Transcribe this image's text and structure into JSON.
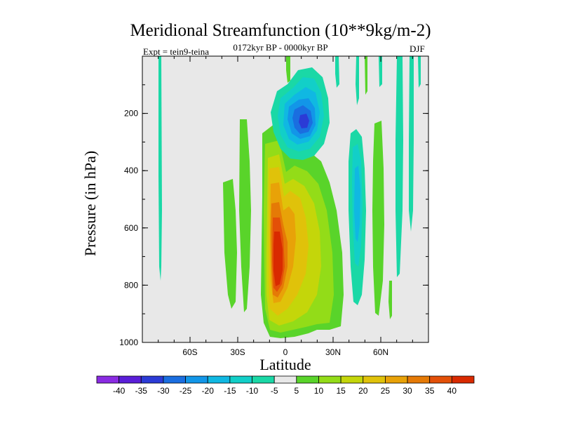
{
  "header": {
    "title": "Meridional Streamfunction (10**9kg/m-2)",
    "subtitle": "0172kyr BP - 0000kyr BP",
    "experiment": "Expt = tein9-teina",
    "season": "DJF"
  },
  "chart_data": {
    "type": "contour",
    "title": "Meridional Streamfunction (10**9kg/m-2)",
    "xlabel": "Latitude",
    "ylabel": "Pressure (in hPa)",
    "xlim": [
      -90,
      90
    ],
    "ylim": [
      1000,
      0
    ],
    "x_ticks": [
      {
        "value": -60,
        "label": "60S"
      },
      {
        "value": -30,
        "label": "30S"
      },
      {
        "value": 0,
        "label": "0"
      },
      {
        "value": 30,
        "label": "30N"
      },
      {
        "value": 60,
        "label": "60N"
      }
    ],
    "y_ticks": [
      {
        "value": 200,
        "label": "200"
      },
      {
        "value": 400,
        "label": "400"
      },
      {
        "value": 600,
        "label": "600"
      },
      {
        "value": 800,
        "label": "800"
      },
      {
        "value": 1000,
        "label": "1000"
      }
    ],
    "background_color": "#e8e8e8",
    "colorbar": {
      "labels": [
        "-40",
        "-35",
        "-30",
        "-25",
        "-20",
        "-15",
        "-10",
        "-5",
        "5",
        "10",
        "15",
        "20",
        "25",
        "30",
        "35",
        "40"
      ],
      "colors": [
        "#8a2be2",
        "#5a1ed8",
        "#2b3bd6",
        "#1a6ee0",
        "#1296e8",
        "#10b8e2",
        "#12cfc8",
        "#1ad8a6",
        "#e8e8e8",
        "#59d42a",
        "#93dc18",
        "#c4d60a",
        "#e0c20a",
        "#e8a208",
        "#e57a06",
        "#e35008",
        "#d92a00"
      ]
    },
    "features": [
      {
        "name": "southern-polar-strip",
        "lat_range": [
          -76,
          -75
        ],
        "p_range": [
          0,
          780
        ],
        "value": -5
      },
      {
        "name": "upper-tropical-negative-cell",
        "lat_range": [
          -5,
          20
        ],
        "p_range": [
          60,
          330
        ],
        "min_value": -30,
        "center_lat": 12,
        "center_p": 230
      },
      {
        "name": "southern-weak-positive-band",
        "lat_range": [
          -37,
          -30
        ],
        "p_range": [
          200,
          880
        ],
        "value": 5
      },
      {
        "name": "tropical-positive-cell",
        "lat_range": [
          -15,
          10
        ],
        "p_range": [
          260,
          990
        ],
        "max_value": 40,
        "center_lat": -3,
        "center_p": 750
      },
      {
        "name": "northern-positive-cell",
        "lat_range": [
          5,
          40
        ],
        "p_range": [
          240,
          970
        ],
        "max_value": 20,
        "center_lat": 14,
        "center_p": 600
      },
      {
        "name": "northern-negative-cell",
        "lat_range": [
          42,
          52
        ],
        "p_range": [
          220,
          860
        ],
        "min_value": -15
      },
      {
        "name": "northern-positive-band",
        "lat_range": [
          55,
          60
        ],
        "p_range": [
          200,
          920
        ],
        "value": 5
      },
      {
        "name": "northern-polar-strips",
        "lat_range": [
          63,
          82
        ],
        "p_range": [
          0,
          800
        ],
        "value": -5
      },
      {
        "name": "upper-northern-streaks",
        "lat_range": [
          25,
          50
        ],
        "p_range": [
          0,
          200
        ],
        "value": -5
      }
    ]
  }
}
